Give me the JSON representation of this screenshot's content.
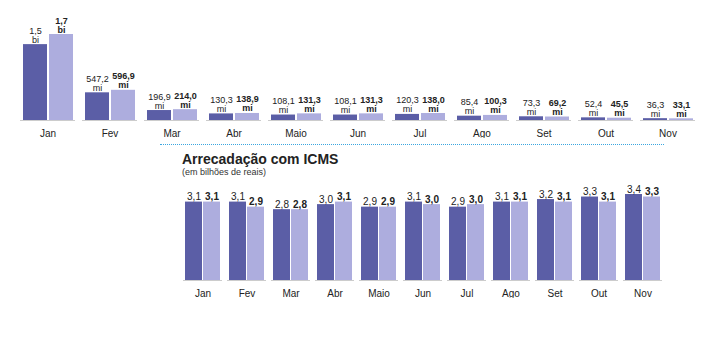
{
  "chart_data": [
    {
      "type": "bar",
      "categories": [
        "Jan",
        "Fev",
        "Mar",
        "Abr",
        "Maio",
        "Jun",
        "Jul",
        "Ago",
        "Set",
        "Out",
        "Nov"
      ],
      "series": [
        {
          "color": "#5b5ea6",
          "values": [
            1500,
            547.2,
            196.9,
            130.3,
            108.1,
            108.1,
            120.3,
            85.4,
            73.3,
            52.4,
            36.3
          ],
          "value_labels": [
            "1,5 bi",
            "547,2 mi",
            "196,9 mi",
            "130,3 mi",
            "108,1 mi",
            "108,1 mi",
            "120,3 mi",
            "85,4 mi",
            "73,3 mi",
            "52,4 mi",
            "36,3 mi"
          ]
        },
        {
          "color": "#adadde",
          "values": [
            1700,
            596.9,
            214.0,
            138.9,
            131.3,
            131.3,
            138.0,
            100.3,
            69.2,
            45.5,
            33.1
          ],
          "value_labels": [
            "1,7 bi",
            "596,9 mi",
            "214,0 mi",
            "138,9 mi",
            "131,3 mi",
            "131,3 mi",
            "138,0 mi",
            "100,3 mi",
            "69,2 mi",
            "45,5 mi",
            "33,1 mi"
          ]
        }
      ],
      "ylim": [
        0,
        1700
      ],
      "data_labels": true,
      "tick_labels": "x"
    },
    {
      "type": "bar",
      "title": "Arrecadação com ICMS",
      "subtitle": "(em bilhões de reais)",
      "categories": [
        "Jan",
        "Fev",
        "Mar",
        "Abr",
        "Maio",
        "Jun",
        "Jul",
        "Ago",
        "Set",
        "Out",
        "Nov"
      ],
      "series": [
        {
          "color": "#5b5ea6",
          "values": [
            3.1,
            3.1,
            2.8,
            3.0,
            2.9,
            3.1,
            2.9,
            3.1,
            3.2,
            3.3,
            3.4
          ],
          "value_labels": [
            "3,1",
            "3,1",
            "2,8",
            "3,0",
            "2,9",
            "3,1",
            "2,9",
            "3,1",
            "3,2",
            "3,3",
            "3,4"
          ]
        },
        {
          "color": "#adadde",
          "values": [
            3.1,
            2.9,
            2.8,
            3.1,
            2.9,
            3.0,
            3.0,
            3.1,
            3.1,
            3.1,
            3.3
          ],
          "value_labels": [
            "3,1",
            "2,9",
            "2,8",
            "3,1",
            "2,9",
            "3,0",
            "3,0",
            "3,1",
            "3,1",
            "3,1",
            "3,3"
          ]
        }
      ],
      "ylim": [
        0,
        3.4
      ],
      "data_labels": true,
      "tick_labels": "x"
    }
  ]
}
